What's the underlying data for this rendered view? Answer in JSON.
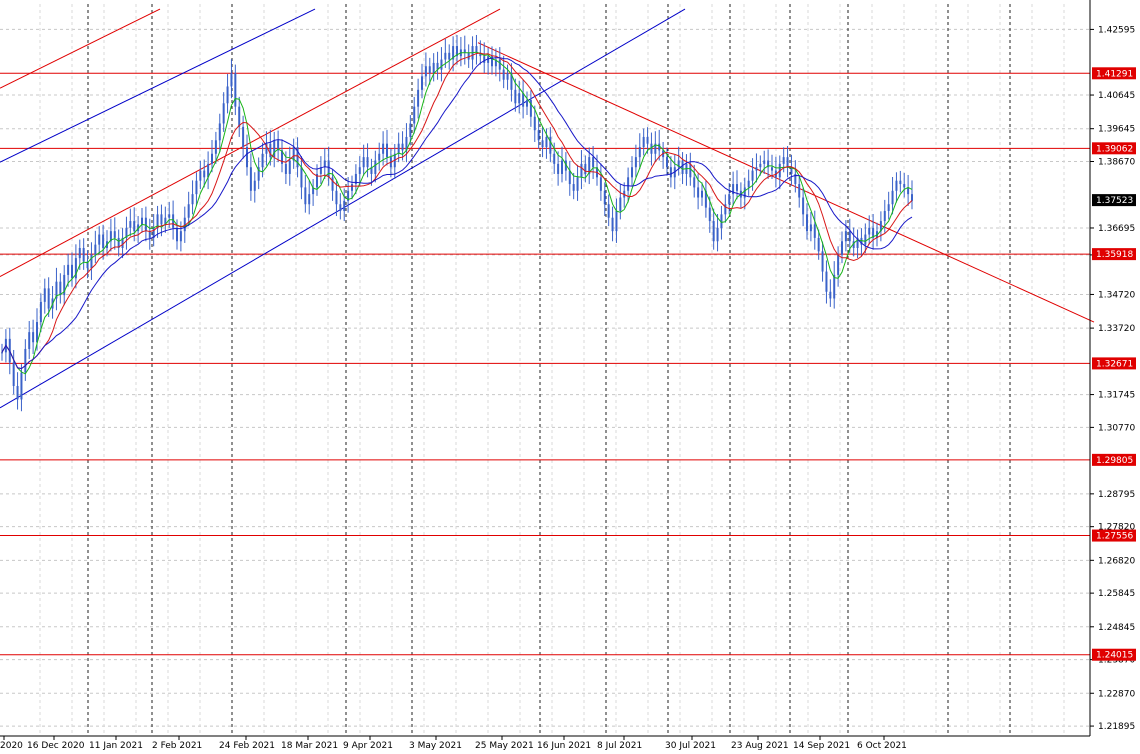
{
  "chart_data": {
    "type": "candlestick",
    "instrument_note": "",
    "x_tick_labels": [
      "2020",
      "16 Dec 2020",
      "11 Jan 2021",
      "2 Feb 2021",
      "24 Feb 2021",
      "18 Mar 2021",
      "9 Apr 2021",
      "3 May 2021",
      "25 May 2021",
      "16 Jun 2021",
      "8 Jul 2021",
      "30 Jul 2021",
      "23 Aug 2021",
      "14 Sep 2021",
      "6 Oct 2021"
    ],
    "y_tick_labels": [
      "1.42595",
      "1.40645",
      "1.39645",
      "1.38670",
      "1.36695",
      "1.35895",
      "1.34720",
      "1.33720",
      "1.31745",
      "1.30770",
      "1.28795",
      "1.27820",
      "1.26820",
      "1.25845",
      "1.24845",
      "1.23870",
      "1.22870",
      "1.21895"
    ],
    "ylim": [
      1.216,
      1.4335
    ],
    "current_price": "1.37523",
    "grid": true,
    "colors": {
      "candles": "#3a62c9",
      "ma_fast": "#18b418",
      "ma_mid": "#d81818",
      "ma_slow": "#1818c8",
      "level_lines": "#e00000",
      "channel_blue": "#0000c8",
      "channel_red": "#e00000",
      "price_badge_bg": "#000000",
      "level_badge_bg": "#e00000"
    },
    "horizontal_levels": [
      "1.41291",
      "1.39062",
      "1.35918",
      "1.32671",
      "1.29805",
      "1.27556",
      "1.24015"
    ],
    "candles_daily_close": [
      1.33,
      1.334,
      1.327,
      1.32,
      1.316,
      1.324,
      1.331,
      1.336,
      1.333,
      1.339,
      1.345,
      1.349,
      1.343,
      1.346,
      1.351,
      1.347,
      1.353,
      1.356,
      1.352,
      1.358,
      1.361,
      1.357,
      1.355,
      1.359,
      1.362,
      1.365,
      1.361,
      1.363,
      1.366,
      1.364,
      1.361,
      1.364,
      1.367,
      1.369,
      1.366,
      1.368,
      1.37,
      1.366,
      1.364,
      1.367,
      1.371,
      1.368,
      1.37,
      1.371,
      1.367,
      1.363,
      1.366,
      1.37,
      1.374,
      1.377,
      1.381,
      1.384,
      1.382,
      1.386,
      1.389,
      1.393,
      1.398,
      1.404,
      1.409,
      1.413,
      1.403,
      1.397,
      1.391,
      1.385,
      1.378,
      1.381,
      1.385,
      1.389,
      1.392,
      1.388,
      1.393,
      1.39,
      1.386,
      1.383,
      1.387,
      1.391,
      1.385,
      1.379,
      1.374,
      1.377,
      1.379,
      1.383,
      1.385,
      1.387,
      1.382,
      1.378,
      1.374,
      1.372,
      1.375,
      1.378,
      1.38,
      1.383,
      1.385,
      1.388,
      1.385,
      1.383,
      1.387,
      1.389,
      1.392,
      1.388,
      1.385,
      1.389,
      1.392,
      1.39,
      1.394,
      1.398,
      1.403,
      1.408,
      1.412,
      1.415,
      1.413,
      1.416,
      1.414,
      1.417,
      1.419,
      1.417,
      1.421,
      1.418,
      1.42,
      1.419,
      1.417,
      1.421,
      1.419,
      1.418,
      1.416,
      1.418,
      1.415,
      1.417,
      1.414,
      1.411,
      1.413,
      1.408,
      1.404,
      1.407,
      1.403,
      1.405,
      1.4,
      1.396,
      1.393,
      1.391,
      1.394,
      1.389,
      1.386,
      1.383,
      1.387,
      1.384,
      1.38,
      1.378,
      1.382,
      1.386,
      1.383,
      1.388,
      1.385,
      1.382,
      1.378,
      1.374,
      1.37,
      1.366,
      1.372,
      1.376,
      1.378,
      1.382,
      1.385,
      1.388,
      1.391,
      1.394,
      1.392,
      1.389,
      1.392,
      1.39,
      1.388,
      1.385,
      1.382,
      1.385,
      1.387,
      1.383,
      1.386,
      1.382,
      1.379,
      1.376,
      1.378,
      1.373,
      1.369,
      1.363,
      1.367,
      1.371,
      1.374,
      1.377,
      1.38,
      1.378,
      1.376,
      1.379,
      1.381,
      1.384,
      1.385,
      1.386,
      1.387,
      1.385,
      1.384,
      1.382,
      1.386,
      1.388,
      1.385,
      1.383,
      1.38,
      1.376,
      1.371,
      1.366,
      1.368,
      1.364,
      1.36,
      1.354,
      1.348,
      1.346,
      1.353,
      1.359,
      1.363,
      1.366,
      1.363,
      1.361,
      1.364,
      1.362,
      1.365,
      1.367,
      1.364,
      1.366,
      1.369,
      1.372,
      1.374,
      1.378,
      1.381,
      1.38,
      1.379,
      1.377,
      1.375
    ]
  }
}
